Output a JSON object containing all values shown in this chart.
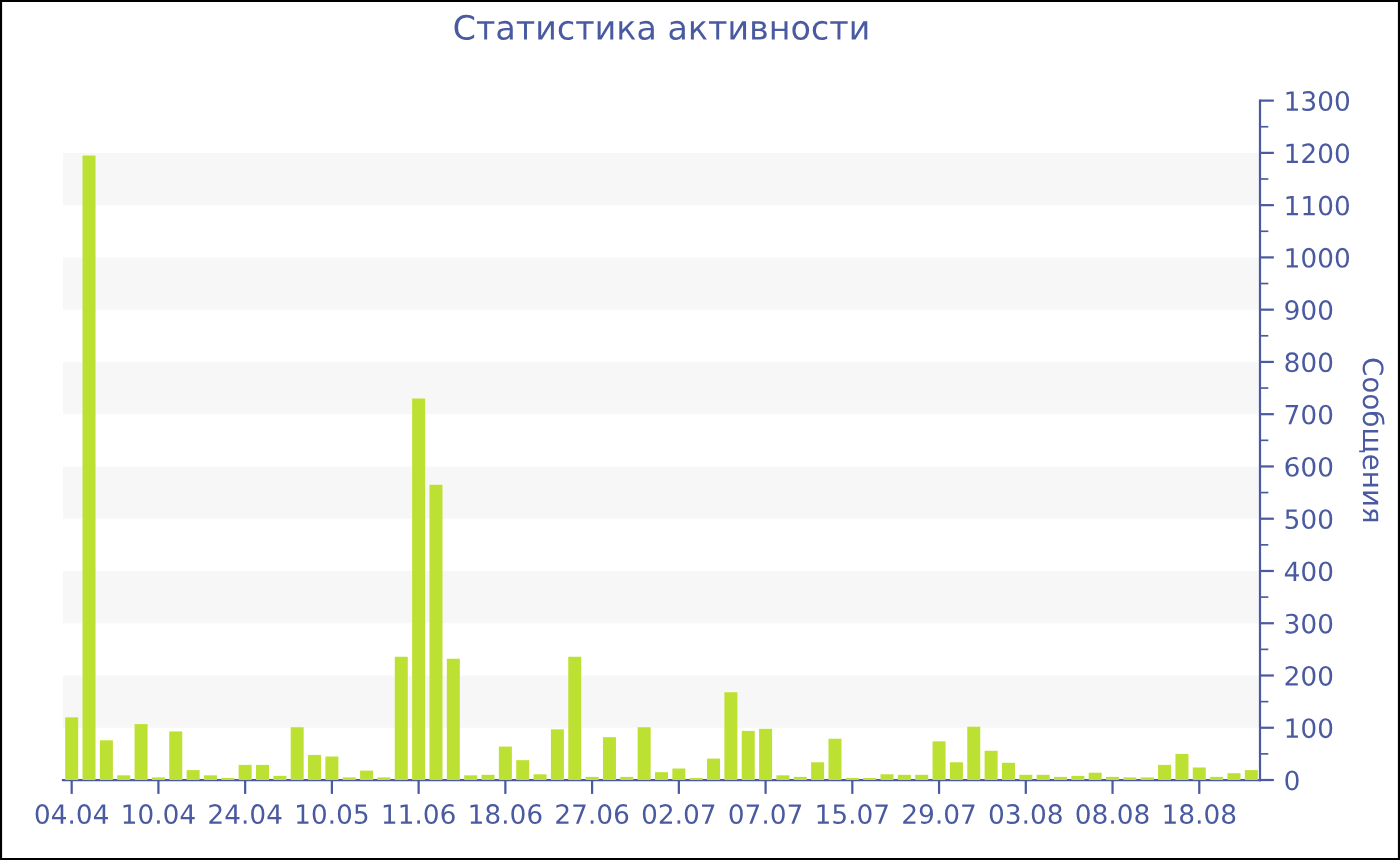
{
  "chart_data": {
    "type": "bar",
    "title": "Статистика активности",
    "ylabel": "Сообщения",
    "categories": [
      "04.04",
      null,
      null,
      null,
      null,
      "10.04",
      null,
      null,
      null,
      null,
      "24.04",
      null,
      null,
      null,
      null,
      "10.05",
      null,
      null,
      null,
      null,
      "11.06",
      null,
      null,
      null,
      null,
      "18.06",
      null,
      null,
      null,
      null,
      "27.06",
      null,
      null,
      null,
      null,
      "02.07",
      null,
      null,
      null,
      null,
      "07.07",
      null,
      null,
      null,
      null,
      "15.07",
      null,
      null,
      null,
      null,
      "29.07",
      null,
      null,
      null,
      null,
      "03.08",
      null,
      null,
      null,
      null,
      "08.08",
      null,
      null,
      null,
      null,
      "18.08",
      null,
      null,
      null
    ],
    "values": [
      120,
      1195,
      76,
      9,
      107,
      5,
      93,
      19,
      9,
      4,
      29,
      29,
      8,
      101,
      48,
      45,
      5,
      18,
      5,
      236,
      730,
      565,
      232,
      9,
      10,
      64,
      38,
      11,
      97,
      236,
      6,
      82,
      6,
      101,
      15,
      22,
      4,
      41,
      168,
      94,
      98,
      9,
      6,
      34,
      79,
      4,
      4,
      11,
      10,
      10,
      74,
      34,
      102,
      56,
      33,
      10,
      10,
      6,
      8,
      14,
      6,
      5,
      5,
      29,
      50,
      24,
      6,
      13,
      19
    ],
    "color": "#bde132",
    "ylim": [
      0,
      1300
    ],
    "yticks": [
      0,
      100,
      200,
      300,
      400,
      500,
      600,
      700,
      800,
      900,
      1000,
      1100,
      1200,
      1300
    ],
    "bands": [
      {
        "axis": "y",
        "from": 100,
        "to": 200,
        "color": "#f7f7f7"
      },
      {
        "axis": "y",
        "from": 300,
        "to": 400,
        "color": "#f7f7f7"
      },
      {
        "axis": "y",
        "from": 500,
        "to": 600,
        "color": "#f7f7f7"
      },
      {
        "axis": "y",
        "from": 700,
        "to": 800,
        "color": "#f7f7f7"
      },
      {
        "axis": "y",
        "from": 900,
        "to": 1000,
        "color": "#f7f7f7"
      },
      {
        "axis": "y",
        "from": 1100,
        "to": 1200,
        "color": "#f7f7f7"
      }
    ],
    "grid": false,
    "legend": false
  }
}
